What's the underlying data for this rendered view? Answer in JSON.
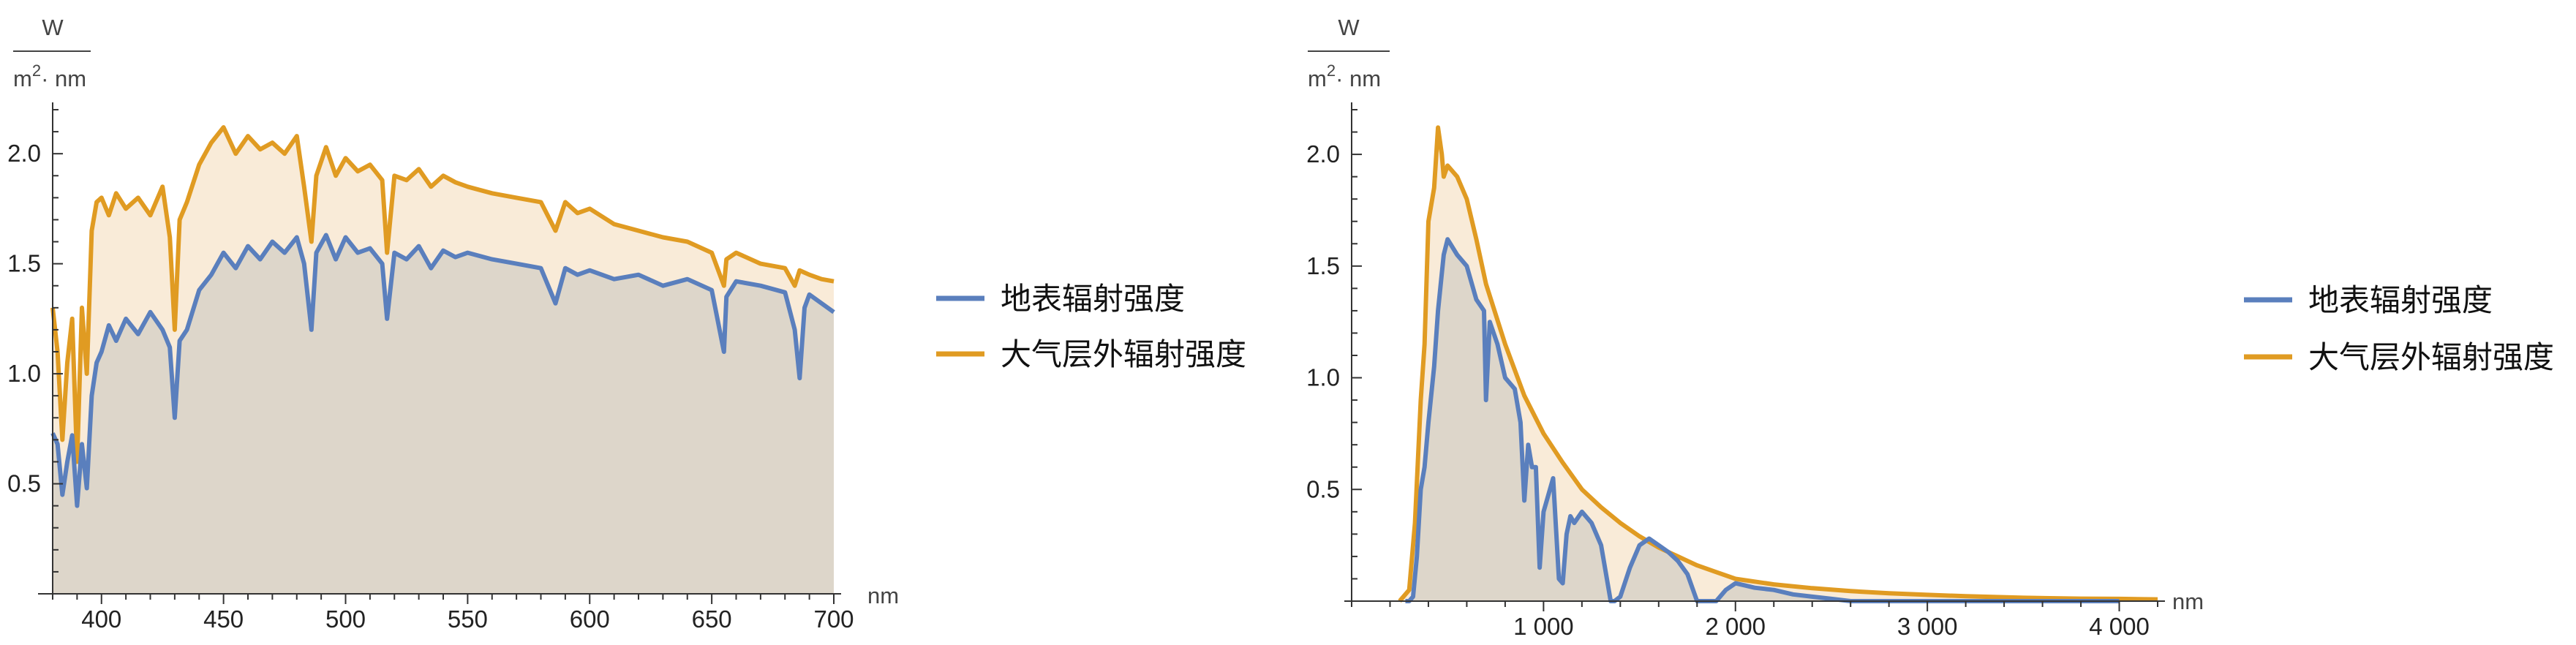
{
  "colors": {
    "surface": "#5a7fbd",
    "extraterrestrial": "#e09b22",
    "surface_fill": "#ddd6ca",
    "extraterrestrial_fill": "#f9ebd8",
    "axis": "#333333"
  },
  "legend": {
    "surface": "地表辐射强度",
    "extraterrestrial": "大气层外辐射强度"
  },
  "units": {
    "numerator": "W",
    "denominator_base": "m",
    "denominator_exp": "2",
    "denominator_rest": "· nm",
    "x": "nm"
  },
  "chart_data": [
    {
      "type": "area",
      "xlim": [
        380,
        700
      ],
      "ylim": [
        0,
        2.2
      ],
      "x_ticks": [
        400,
        450,
        500,
        550,
        600,
        650,
        700
      ],
      "x_tick_labels": [
        "400",
        "450",
        "500",
        "550",
        "600",
        "650",
        "700"
      ],
      "y_ticks": [
        0.5,
        1.0,
        1.5,
        2.0
      ],
      "y_tick_labels": [
        "0.5",
        "1.0",
        "1.5",
        "2.0"
      ],
      "series": [
        {
          "name": "地表辐射强度",
          "x": [
            380,
            382,
            384,
            386,
            388,
            390,
            392,
            394,
            396,
            398,
            400,
            403,
            406,
            410,
            415,
            420,
            425,
            428,
            430,
            432,
            435,
            440,
            445,
            450,
            455,
            460,
            465,
            470,
            475,
            480,
            483,
            486,
            488,
            492,
            496,
            500,
            505,
            510,
            515,
            517,
            520,
            525,
            530,
            535,
            540,
            545,
            550,
            560,
            570,
            580,
            586,
            590,
            595,
            600,
            610,
            620,
            630,
            640,
            650,
            655,
            656,
            660,
            670,
            680,
            684,
            686,
            688,
            690,
            695,
            700
          ],
          "y": [
            0.73,
            0.68,
            0.45,
            0.6,
            0.72,
            0.4,
            0.68,
            0.48,
            0.9,
            1.05,
            1.1,
            1.22,
            1.15,
            1.25,
            1.18,
            1.28,
            1.2,
            1.12,
            0.8,
            1.15,
            1.2,
            1.38,
            1.45,
            1.55,
            1.48,
            1.58,
            1.52,
            1.6,
            1.55,
            1.62,
            1.5,
            1.2,
            1.55,
            1.63,
            1.52,
            1.62,
            1.55,
            1.57,
            1.5,
            1.25,
            1.55,
            1.52,
            1.58,
            1.48,
            1.56,
            1.53,
            1.55,
            1.52,
            1.5,
            1.48,
            1.32,
            1.48,
            1.45,
            1.47,
            1.43,
            1.45,
            1.4,
            1.43,
            1.38,
            1.1,
            1.35,
            1.42,
            1.4,
            1.37,
            1.2,
            0.98,
            1.3,
            1.36,
            1.32,
            1.28
          ]
        },
        {
          "name": "大气层外辐射强度",
          "x": [
            380,
            382,
            384,
            386,
            388,
            390,
            392,
            394,
            396,
            398,
            400,
            403,
            406,
            410,
            415,
            420,
            425,
            428,
            430,
            432,
            435,
            440,
            445,
            450,
            455,
            460,
            465,
            470,
            475,
            480,
            483,
            486,
            488,
            492,
            496,
            500,
            505,
            510,
            515,
            517,
            520,
            525,
            530,
            535,
            540,
            545,
            550,
            560,
            570,
            580,
            586,
            590,
            595,
            600,
            610,
            620,
            630,
            640,
            650,
            655,
            656,
            660,
            670,
            680,
            684,
            686,
            688,
            690,
            695,
            700
          ],
          "y": [
            1.3,
            1.1,
            0.7,
            1.05,
            1.25,
            0.6,
            1.3,
            1.0,
            1.65,
            1.78,
            1.8,
            1.72,
            1.82,
            1.75,
            1.8,
            1.72,
            1.85,
            1.62,
            1.2,
            1.7,
            1.78,
            1.95,
            2.05,
            2.12,
            2.0,
            2.08,
            2.02,
            2.05,
            2.0,
            2.08,
            1.85,
            1.6,
            1.9,
            2.03,
            1.9,
            1.98,
            1.92,
            1.95,
            1.88,
            1.55,
            1.9,
            1.88,
            1.93,
            1.85,
            1.9,
            1.87,
            1.85,
            1.82,
            1.8,
            1.78,
            1.65,
            1.78,
            1.73,
            1.75,
            1.68,
            1.65,
            1.62,
            1.6,
            1.55,
            1.4,
            1.52,
            1.55,
            1.5,
            1.48,
            1.4,
            1.47,
            1.46,
            1.45,
            1.43,
            1.42
          ]
        }
      ]
    },
    {
      "type": "area",
      "xlim": [
        0,
        4200
      ],
      "ylim": [
        0,
        2.2
      ],
      "x_ticks": [
        1000,
        2000,
        3000,
        4000
      ],
      "x_tick_labels": [
        "1 000",
        "2 000",
        "3 000",
        "4 000"
      ],
      "y_ticks": [
        0.5,
        1.0,
        1.5,
        2.0
      ],
      "y_tick_labels": [
        "0.5",
        "1.0",
        "1.5",
        "2.0"
      ],
      "series": [
        {
          "name": "地表辐射强度",
          "x": [
            280,
            300,
            320,
            340,
            360,
            380,
            400,
            430,
            450,
            480,
            500,
            550,
            600,
            650,
            690,
            700,
            720,
            760,
            800,
            850,
            880,
            900,
            920,
            940,
            960,
            980,
            1000,
            1050,
            1080,
            1100,
            1120,
            1140,
            1160,
            1200,
            1250,
            1300,
            1350,
            1370,
            1400,
            1450,
            1500,
            1550,
            1600,
            1650,
            1700,
            1750,
            1800,
            1850,
            1900,
            1950,
            2000,
            2050,
            2100,
            2200,
            2300,
            2400,
            2500,
            2600,
            2800,
            3000,
            3500,
            4000
          ],
          "y": [
            0.0,
            0.0,
            0.02,
            0.2,
            0.5,
            0.6,
            0.8,
            1.05,
            1.3,
            1.55,
            1.62,
            1.55,
            1.5,
            1.35,
            1.3,
            0.9,
            1.25,
            1.15,
            1.0,
            0.95,
            0.8,
            0.45,
            0.7,
            0.6,
            0.6,
            0.15,
            0.4,
            0.55,
            0.1,
            0.08,
            0.3,
            0.38,
            0.35,
            0.4,
            0.35,
            0.25,
            0.0,
            0.0,
            0.02,
            0.15,
            0.25,
            0.28,
            0.25,
            0.22,
            0.18,
            0.12,
            0.0,
            0.0,
            0.0,
            0.05,
            0.08,
            0.07,
            0.06,
            0.05,
            0.03,
            0.02,
            0.01,
            0.0,
            0.0,
            0.0,
            0.0,
            0.0
          ]
        },
        {
          "name": "大气层外辐射强度",
          "x": [
            250,
            300,
            330,
            360,
            380,
            400,
            430,
            450,
            470,
            480,
            500,
            550,
            600,
            650,
            700,
            800,
            900,
            1000,
            1100,
            1200,
            1300,
            1400,
            1500,
            1600,
            1700,
            1800,
            1900,
            2000,
            2200,
            2400,
            2600,
            2800,
            3000,
            3200,
            3500,
            3800,
            4000,
            4200
          ],
          "y": [
            0.0,
            0.05,
            0.35,
            0.9,
            1.15,
            1.7,
            1.85,
            2.12,
            2.0,
            1.9,
            1.95,
            1.9,
            1.8,
            1.62,
            1.42,
            1.15,
            0.92,
            0.75,
            0.62,
            0.5,
            0.42,
            0.35,
            0.29,
            0.24,
            0.2,
            0.16,
            0.13,
            0.1,
            0.075,
            0.058,
            0.045,
            0.035,
            0.028,
            0.022,
            0.015,
            0.011,
            0.01,
            0.008
          ]
        }
      ]
    }
  ]
}
